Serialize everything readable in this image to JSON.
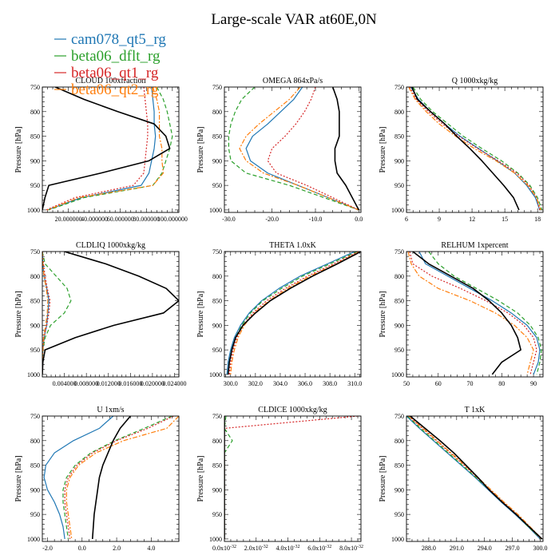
{
  "figure": {
    "title": "Large-scale VAR at60E,0N"
  },
  "legend": [
    {
      "name": "cam078_qt5_rg",
      "color": "#1f77b4",
      "dash": "solid"
    },
    {
      "name": "beta06_dflt_rg",
      "color": "#2ca02c",
      "dash": "dash"
    },
    {
      "name": "beta06_qt1_rg",
      "color": "#d62728",
      "dash": "dot"
    },
    {
      "name": "beta06_qt2_rg",
      "color": "#ff7f0e",
      "dash": "dashdot"
    }
  ],
  "black_line": {
    "color": "#000000",
    "dash": "solid"
  },
  "chart_data": [
    {
      "type": "line",
      "title": "CLOUD 100xfraction",
      "ylabel": "Pressure [hPa]",
      "xlim": [
        0,
        105
      ],
      "ylim": [
        1005,
        750
      ],
      "xticks": [
        20,
        40,
        60,
        80,
        100
      ],
      "xtick_labels": [
        "20.000000",
        "40.000000",
        "60.000000",
        "80.000000",
        "100.000000"
      ],
      "yticks": [
        750,
        800,
        850,
        900,
        950,
        1000
      ],
      "y": [
        750,
        775,
        800,
        825,
        850,
        875,
        900,
        925,
        950,
        975,
        1000
      ],
      "series": [
        {
          "name": "cam078_qt5_rg",
          "values": [
            84,
            85,
            86,
            86,
            87,
            86,
            84,
            82,
            76,
            30,
            4
          ]
        },
        {
          "name": "beta06_dflt_rg",
          "values": [
            88,
            93,
            96,
            98,
            100,
            98,
            95,
            92,
            85,
            32,
            5
          ]
        },
        {
          "name": "beta06_qt1_rg",
          "values": [
            78,
            79,
            80,
            81,
            81,
            80,
            79,
            78,
            70,
            25,
            3
          ]
        },
        {
          "name": "beta06_qt2_rg",
          "values": [
            85,
            88,
            90,
            90,
            90,
            92,
            92,
            93,
            85,
            28,
            4
          ]
        },
        {
          "name": "",
          "values": [
            10,
            32,
            58,
            86,
            95,
            98,
            82,
            45,
            5,
            2,
            0
          ]
        }
      ]
    },
    {
      "type": "line",
      "title": "OMEGA 864xPa/s",
      "ylabel": "Pressure [hPa]",
      "xlim": [
        -31,
        0.5
      ],
      "ylim": [
        1005,
        750
      ],
      "xticks": [
        -30,
        -20,
        -10,
        0
      ],
      "xtick_labels": [
        "-30.0",
        "-20.0",
        "-10.0",
        "0.0"
      ],
      "yticks": [
        750,
        800,
        850,
        900,
        950,
        1000
      ],
      "y": [
        750,
        775,
        800,
        825,
        850,
        875,
        900,
        925,
        950,
        975,
        1000
      ],
      "series": [
        {
          "name": "cam078_qt5_rg",
          "values": [
            -13,
            -15,
            -18,
            -21,
            -24.5,
            -26,
            -25,
            -21,
            -14,
            -7,
            0
          ]
        },
        {
          "name": "beta06_dflt_rg",
          "values": [
            -24,
            -27,
            -28.5,
            -29.5,
            -30,
            -30,
            -29.5,
            -26,
            -16,
            -8,
            0
          ]
        },
        {
          "name": "beta06_qt1_rg",
          "values": [
            -10,
            -11,
            -12.5,
            -14.5,
            -17,
            -20,
            -21,
            -19,
            -12,
            -6,
            0
          ]
        },
        {
          "name": "beta06_qt2_rg",
          "values": [
            -13.5,
            -16,
            -19.5,
            -23,
            -26,
            -27.5,
            -26,
            -22,
            -14,
            -7,
            0
          ]
        },
        {
          "name": "",
          "values": [
            -6,
            -5,
            -4.5,
            -4.5,
            -4.5,
            -5.5,
            -5.5,
            -5,
            -3,
            -1.5,
            0
          ]
        }
      ]
    },
    {
      "type": "line",
      "title": "Q 1000xkg/kg",
      "ylabel": "Pressure [hPa]",
      "xlim": [
        6,
        18.5
      ],
      "ylim": [
        1005,
        750
      ],
      "xticks": [
        6,
        9,
        12,
        15,
        18
      ],
      "xtick_labels": [
        "6",
        "9",
        "12",
        "15",
        "18"
      ],
      "yticks": [
        750,
        800,
        850,
        900,
        950,
        1000
      ],
      "y": [
        750,
        775,
        800,
        825,
        850,
        875,
        900,
        925,
        950,
        975,
        1000
      ],
      "series": [
        {
          "name": "cam078_qt5_rg",
          "values": [
            6.4,
            7.1,
            8.2,
            9.5,
            10.9,
            12.6,
            14.3,
            15.9,
            17.0,
            17.8,
            18.2
          ]
        },
        {
          "name": "beta06_dflt_rg",
          "values": [
            6.6,
            7.3,
            8.4,
            9.8,
            11.2,
            12.9,
            14.7,
            16.2,
            17.3,
            18.0,
            18.4
          ]
        },
        {
          "name": "beta06_qt1_rg",
          "values": [
            6.3,
            6.9,
            8.0,
            9.3,
            10.8,
            12.5,
            14.4,
            16.1,
            17.2,
            17.9,
            18.2
          ]
        },
        {
          "name": "beta06_qt2_rg",
          "values": [
            6.2,
            6.8,
            7.8,
            9.0,
            10.5,
            12.2,
            14.2,
            15.9,
            17.1,
            17.9,
            18.3
          ]
        },
        {
          "name": "",
          "values": [
            6.5,
            7.0,
            8.2,
            9.5,
            10.6,
            11.8,
            12.9,
            13.9,
            14.9,
            15.8,
            16.3
          ]
        }
      ]
    },
    {
      "type": "line",
      "title": "CLDLIQ 1000xkg/kg",
      "ylabel": "Pressure [hPa]",
      "xlim": [
        0,
        0.0248
      ],
      "ylim": [
        1005,
        750
      ],
      "xticks": [
        0.004,
        0.008,
        0.012,
        0.016,
        0.02,
        0.024
      ],
      "xtick_labels": [
        "0.004000",
        "0.008000",
        "0.012000",
        "0.016000",
        "0.020000",
        "0.024000"
      ],
      "yticks": [
        750,
        800,
        850,
        900,
        950,
        1000
      ],
      "y": [
        750,
        775,
        800,
        825,
        850,
        875,
        900,
        925,
        950,
        975,
        1000
      ],
      "series": [
        {
          "name": "cam078_qt5_rg",
          "values": [
            0,
            0.0001,
            0.0003,
            0.0008,
            0.0012,
            0.001,
            0.0008,
            0.0003,
            0.0001,
            0,
            0
          ]
        },
        {
          "name": "beta06_dflt_rg",
          "values": [
            0,
            0.0005,
            0.0025,
            0.0045,
            0.0052,
            0.004,
            0.0015,
            0.0005,
            0.0001,
            0,
            0
          ]
        },
        {
          "name": "beta06_qt1_rg",
          "values": [
            0,
            0.0002,
            0.0005,
            0.0009,
            0.0014,
            0.0012,
            0.0008,
            0.0003,
            0.0001,
            0,
            0
          ]
        },
        {
          "name": "beta06_qt2_rg",
          "values": [
            0,
            0.0001,
            0.0003,
            0.0007,
            0.001,
            0.0009,
            0.0006,
            0.0002,
            0.0001,
            0,
            0
          ]
        },
        {
          "name": "",
          "values": [
            0.004,
            0.0115,
            0.0175,
            0.0225,
            0.0248,
            0.022,
            0.013,
            0.006,
            0.0005,
            0.0001,
            0
          ]
        }
      ]
    },
    {
      "type": "line",
      "title": "THETA 1.0xK",
      "ylabel": "Pressure [hPa]",
      "xlim": [
        299.5,
        310.5
      ],
      "ylim": [
        1005,
        750
      ],
      "xticks": [
        300,
        302,
        304,
        306,
        308,
        310
      ],
      "xtick_labels": [
        "300.0",
        "302.0",
        "304.0",
        "306.0",
        "308.0",
        "310.0"
      ],
      "yticks": [
        750,
        800,
        850,
        900,
        950,
        1000
      ],
      "y": [
        750,
        775,
        800,
        825,
        850,
        875,
        900,
        925,
        950,
        975,
        1000
      ],
      "series": [
        {
          "name": "cam078_qt5_rg",
          "values": [
            310.0,
            307.8,
            305.6,
            303.9,
            302.5,
            301.5,
            300.8,
            300.3,
            300.0,
            299.8,
            299.7
          ]
        },
        {
          "name": "beta06_dflt_rg",
          "values": [
            310.2,
            308.0,
            305.8,
            304.1,
            302.6,
            301.6,
            300.9,
            300.4,
            300.1,
            299.9,
            299.8
          ]
        },
        {
          "name": "beta06_qt1_rg",
          "values": [
            310.3,
            308.3,
            306.2,
            304.4,
            302.9,
            301.8,
            301.0,
            300.5,
            300.2,
            300.0,
            299.9
          ]
        },
        {
          "name": "beta06_qt2_rg",
          "values": [
            310.4,
            308.5,
            306.4,
            304.6,
            303.1,
            301.9,
            301.1,
            300.6,
            300.3,
            300.1,
            300.0
          ]
        },
        {
          "name": "",
          "values": [
            310.5,
            308.6,
            306.6,
            304.8,
            303.2,
            302.0,
            301.0,
            300.4,
            300.1,
            299.9,
            299.8
          ]
        }
      ]
    },
    {
      "type": "line",
      "title": "RELHUM 1xpercent",
      "ylabel": "Pressure [hPa]",
      "xlim": [
        50,
        93
      ],
      "ylim": [
        1005,
        750
      ],
      "xticks": [
        50,
        60,
        70,
        80,
        90
      ],
      "xtick_labels": [
        "50",
        "60",
        "70",
        "80",
        "90"
      ],
      "yticks": [
        750,
        800,
        850,
        900,
        950,
        1000
      ],
      "y": [
        750,
        775,
        800,
        825,
        850,
        875,
        900,
        925,
        950,
        975,
        1000
      ],
      "series": [
        {
          "name": "cam078_qt5_rg",
          "values": [
            54,
            56,
            63,
            70,
            77,
            83,
            88,
            91,
            92,
            91.5,
            90
          ]
        },
        {
          "name": "beta06_dflt_rg",
          "values": [
            57,
            60,
            65,
            72,
            79,
            85,
            89,
            91.5,
            92.5,
            92,
            91
          ]
        },
        {
          "name": "beta06_qt1_rg",
          "values": [
            51,
            52,
            58,
            67,
            75,
            82,
            87,
            90,
            91,
            90,
            89
          ]
        },
        {
          "name": "beta06_qt2_rg",
          "values": [
            50.5,
            51.5,
            54,
            60,
            70,
            78,
            84,
            88,
            90,
            89,
            88
          ]
        },
        {
          "name": "",
          "values": [
            52,
            57,
            64,
            71,
            76,
            80,
            83,
            85,
            86,
            80,
            77
          ]
        }
      ]
    },
    {
      "type": "line",
      "title": "U 1xm/s",
      "ylabel": "Pressure [hPa]",
      "xlim": [
        -2.3,
        5.6
      ],
      "ylim": [
        1005,
        750
      ],
      "xticks": [
        -2,
        0,
        2,
        4
      ],
      "xtick_labels": [
        "-2.0",
        "0.0",
        "2.0",
        "4.0"
      ],
      "yticks": [
        750,
        800,
        850,
        900,
        950,
        1000
      ],
      "y": [
        750,
        775,
        800,
        825,
        850,
        875,
        900,
        925,
        950,
        975,
        1000
      ],
      "series": [
        {
          "name": "cam078_qt5_rg",
          "values": [
            1.8,
            1.0,
            -0.5,
            -1.6,
            -2.1,
            -2.2,
            -2.0,
            -1.6,
            -1.3,
            -1.1,
            -1.0
          ]
        },
        {
          "name": "beta06_dflt_rg",
          "values": [
            5.2,
            3.6,
            1.9,
            0.5,
            -0.4,
            -0.9,
            -1.1,
            -1.1,
            -1.0,
            -0.9,
            -0.8
          ]
        },
        {
          "name": "beta06_qt1_rg",
          "values": [
            5.3,
            3.8,
            2.0,
            0.6,
            -0.3,
            -0.8,
            -1.0,
            -1.0,
            -0.9,
            -0.8,
            -0.7
          ]
        },
        {
          "name": "beta06_qt2_rg",
          "values": [
            5.6,
            4.9,
            2.4,
            0.8,
            -0.2,
            -0.7,
            -0.9,
            -0.9,
            -0.8,
            -0.7,
            -0.6
          ]
        },
        {
          "name": "",
          "values": [
            2.8,
            2.2,
            1.8,
            1.5,
            1.2,
            1.0,
            0.9,
            0.8,
            0.7,
            0.65,
            0.6
          ]
        }
      ]
    },
    {
      "type": "line",
      "title": "CLDICE 1000xkg/kg",
      "ylabel": "Pressure [hPa]",
      "xlim": [
        0,
        8.6e-32
      ],
      "ylim": [
        1005,
        750
      ],
      "xticks": [
        0,
        2e-32,
        4e-32,
        6e-32,
        8e-32
      ],
      "xtick_labels": [
        "0.0x10",
        "2.0x10",
        "4.0x10",
        "6.0x10",
        "8.0x10"
      ],
      "xtick_exponent": "-32",
      "yticks": [
        750,
        800,
        850,
        900,
        950,
        1000
      ],
      "y": [
        750,
        775,
        800,
        825,
        850,
        875,
        900,
        925,
        950,
        975,
        1000
      ],
      "series": [
        {
          "name": "cam078_qt5_rg",
          "values": [
            0,
            0,
            0,
            0,
            0,
            0,
            0,
            0,
            0,
            0,
            0
          ]
        },
        {
          "name": "beta06_dflt_rg",
          "values": [
            1e-33,
            0,
            5e-33,
            0,
            0,
            0,
            0,
            0,
            0,
            0,
            0
          ]
        },
        {
          "name": "beta06_qt1_rg",
          "values": [
            8.4e-32,
            0,
            0,
            0,
            0,
            0,
            0,
            0,
            0,
            0,
            0
          ]
        },
        {
          "name": "beta06_qt2_rg",
          "values": [
            0,
            0,
            0,
            0,
            0,
            0,
            0,
            0,
            0,
            0,
            0
          ]
        },
        {
          "name": "",
          "values": [
            0,
            0,
            0,
            0,
            0,
            0,
            0,
            0,
            0,
            0,
            0
          ]
        }
      ]
    },
    {
      "type": "line",
      "title": "T 1xK",
      "ylabel": "Pressure [hPa]",
      "xlim": [
        285.6,
        300.3
      ],
      "ylim": [
        1005,
        750
      ],
      "xticks": [
        288,
        291,
        294,
        297,
        300
      ],
      "xtick_labels": [
        "288.0",
        "291.0",
        "294.0",
        "297.0",
        "300.0"
      ],
      "yticks": [
        750,
        800,
        850,
        900,
        950,
        1000
      ],
      "y": [
        750,
        775,
        800,
        825,
        850,
        875,
        900,
        925,
        950,
        975,
        1000
      ],
      "series": [
        {
          "name": "cam078_qt5_rg",
          "values": [
            285.6,
            287.0,
            288.5,
            290.0,
            291.5,
            293.0,
            294.4,
            295.8,
            297.3,
            298.7,
            300.0
          ]
        },
        {
          "name": "beta06_dflt_rg",
          "values": [
            285.7,
            287.1,
            288.6,
            290.1,
            291.6,
            293.1,
            294.5,
            295.9,
            297.4,
            298.7,
            300.1
          ]
        },
        {
          "name": "beta06_qt1_rg",
          "values": [
            285.8,
            287.3,
            288.8,
            290.3,
            291.8,
            293.2,
            294.6,
            296.0,
            297.5,
            298.8,
            300.1
          ]
        },
        {
          "name": "beta06_qt2_rg",
          "values": [
            285.9,
            287.4,
            288.9,
            290.4,
            291.9,
            293.3,
            294.7,
            296.1,
            297.6,
            298.9,
            300.2
          ]
        },
        {
          "name": "",
          "values": [
            286.0,
            287.6,
            289.2,
            290.7,
            292.0,
            293.3,
            294.5,
            295.9,
            297.4,
            298.8,
            300.2
          ]
        }
      ]
    }
  ]
}
